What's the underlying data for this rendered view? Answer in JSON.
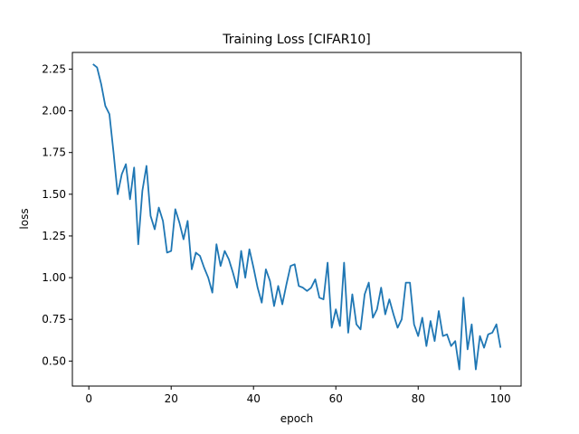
{
  "chart_data": {
    "type": "line",
    "title": "Training Loss [CIFAR10]",
    "xlabel": "epoch",
    "ylabel": "loss",
    "xlim": [
      -4,
      105
    ],
    "ylim": [
      0.35,
      2.35
    ],
    "xticks": [
      0,
      20,
      40,
      60,
      80,
      100
    ],
    "yticks": [
      0.5,
      0.75,
      1.0,
      1.25,
      1.5,
      1.75,
      2.0,
      2.25
    ],
    "grid": false,
    "legend": "none",
    "series": [
      {
        "color": "#1f77b4",
        "x": [
          1,
          2,
          3,
          4,
          5,
          6,
          7,
          8,
          9,
          10,
          11,
          12,
          13,
          14,
          15,
          16,
          17,
          18,
          19,
          20,
          21,
          22,
          23,
          24,
          25,
          26,
          27,
          28,
          29,
          30,
          31,
          32,
          33,
          34,
          35,
          36,
          37,
          38,
          39,
          40,
          41,
          42,
          43,
          44,
          45,
          46,
          47,
          48,
          49,
          50,
          51,
          52,
          53,
          54,
          55,
          56,
          57,
          58,
          59,
          60,
          61,
          62,
          63,
          64,
          65,
          66,
          67,
          68,
          69,
          70,
          71,
          72,
          73,
          74,
          75,
          76,
          77,
          78,
          79,
          80,
          81,
          82,
          83,
          84,
          85,
          86,
          87,
          88,
          89,
          90,
          91,
          92,
          93,
          94,
          95,
          96,
          97,
          98,
          99,
          100
        ],
        "values": [
          2.28,
          2.26,
          2.16,
          2.03,
          1.98,
          1.75,
          1.5,
          1.62,
          1.68,
          1.47,
          1.66,
          1.2,
          1.52,
          1.67,
          1.37,
          1.29,
          1.42,
          1.34,
          1.15,
          1.16,
          1.41,
          1.33,
          1.23,
          1.34,
          1.05,
          1.15,
          1.13,
          1.06,
          1.0,
          0.91,
          1.2,
          1.07,
          1.16,
          1.11,
          1.03,
          0.94,
          1.16,
          1.0,
          1.17,
          1.06,
          0.94,
          0.85,
          1.05,
          0.98,
          0.83,
          0.95,
          0.84,
          0.96,
          1.07,
          1.08,
          0.95,
          0.94,
          0.92,
          0.94,
          0.99,
          0.88,
          0.87,
          1.09,
          0.7,
          0.81,
          0.71,
          1.09,
          0.67,
          0.9,
          0.72,
          0.69,
          0.9,
          0.97,
          0.76,
          0.81,
          0.94,
          0.78,
          0.87,
          0.78,
          0.7,
          0.75,
          0.97,
          0.97,
          0.72,
          0.65,
          0.76,
          0.59,
          0.74,
          0.62,
          0.8,
          0.65,
          0.66,
          0.59,
          0.62,
          0.45,
          0.88,
          0.57,
          0.72,
          0.45,
          0.65,
          0.58,
          0.66,
          0.67,
          0.72,
          0.58
        ]
      }
    ]
  }
}
